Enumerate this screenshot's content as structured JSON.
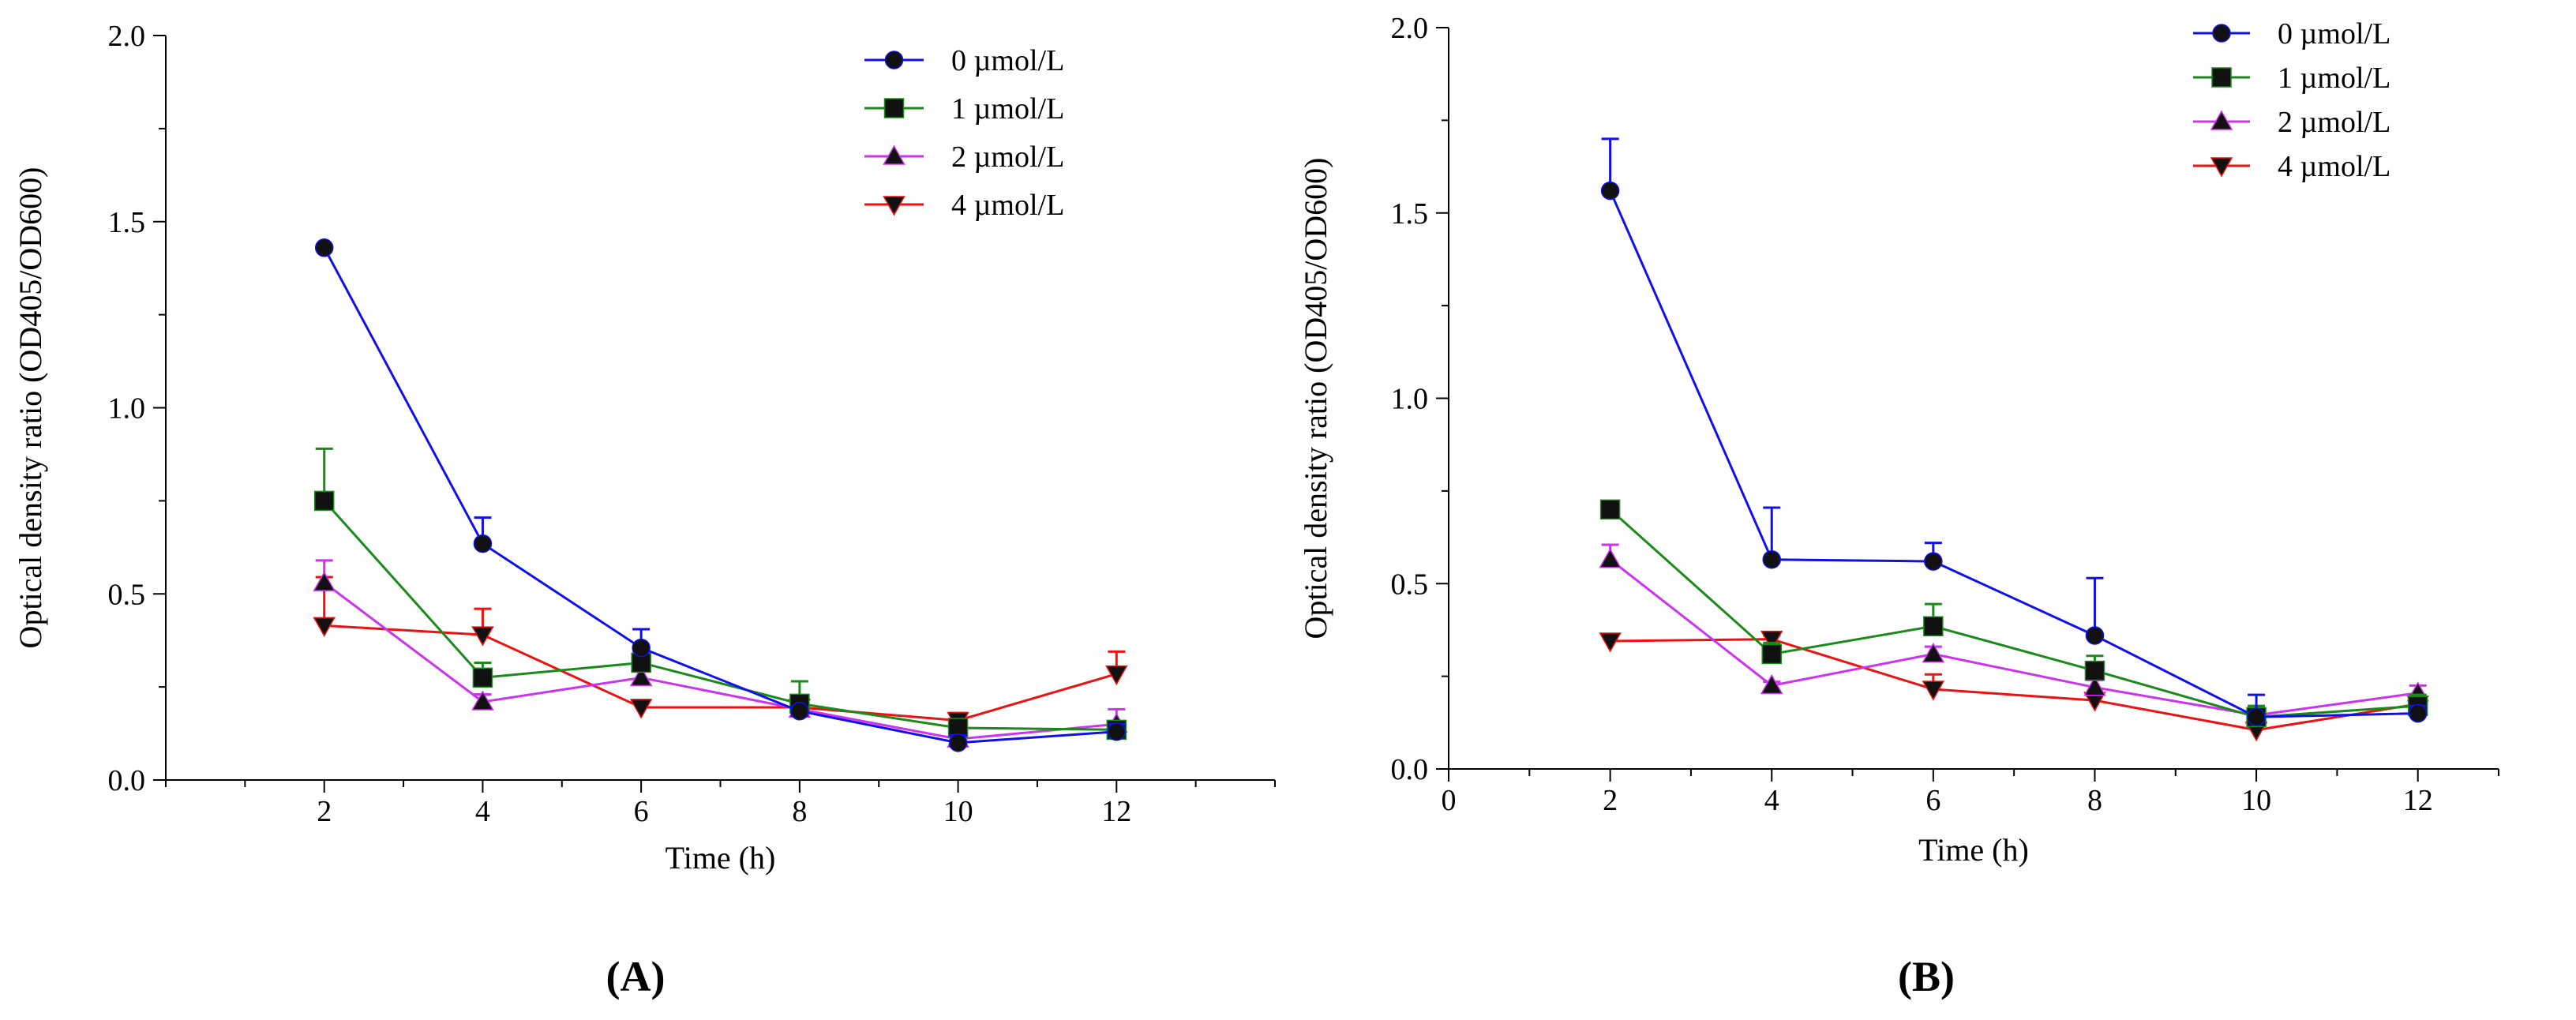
{
  "chart_data": [
    {
      "type": "line",
      "panel_label": "(A)",
      "xlabel": "Time (h)",
      "ylabel": "Optical density ratio (OD405/OD600)",
      "xlim": [
        0,
        14
      ],
      "ylim": [
        0,
        2.0
      ],
      "x_ticks": [
        2,
        4,
        6,
        8,
        10,
        12
      ],
      "y_ticks": [
        "0.0",
        "0.5",
        "1.0",
        "1.5",
        "2.0"
      ],
      "legend_position": "top-right",
      "x": [
        2,
        4,
        6,
        8,
        10,
        12
      ],
      "series": [
        {
          "name": "0  µmol/L",
          "color": "#1010ee",
          "marker": "circle",
          "values": [
            1.43,
            0.635,
            0.355,
            0.185,
            0.1,
            0.13
          ],
          "err": [
            0.0,
            0.07,
            0.05,
            0.01,
            0.02,
            0.02
          ]
        },
        {
          "name": "1  µmol/L",
          "color": "#1a8a1a",
          "marker": "square",
          "values": [
            0.75,
            0.275,
            0.315,
            0.205,
            0.14,
            0.135
          ],
          "err": [
            0.14,
            0.04,
            0.03,
            0.06,
            0.02,
            0.01
          ]
        },
        {
          "name": "2  µmol/L",
          "color": "#cc33ee",
          "marker": "triangle",
          "values": [
            0.53,
            0.21,
            0.275,
            0.19,
            0.11,
            0.15
          ],
          "err": [
            0.06,
            0.02,
            0.02,
            0.02,
            0.02,
            0.04
          ]
        },
        {
          "name": "4  µmol/L",
          "color": "#ee1111",
          "marker": "tri-down",
          "values": [
            0.415,
            0.39,
            0.195,
            0.195,
            0.16,
            0.285
          ],
          "err": [
            0.13,
            0.07,
            0.02,
            0.02,
            0.02,
            0.06
          ]
        }
      ]
    },
    {
      "type": "line",
      "panel_label": "(B)",
      "xlabel": "Time (h)",
      "ylabel": "Optical density ratio (OD405/OD600)",
      "xlim": [
        0,
        13
      ],
      "ylim": [
        0,
        2.0
      ],
      "x_ticks": [
        0,
        2,
        4,
        6,
        8,
        10,
        12
      ],
      "y_ticks": [
        "0.0",
        "0.5",
        "1.0",
        "1.5",
        "2.0"
      ],
      "legend_position": "top-right",
      "x": [
        2,
        4,
        6,
        8,
        10,
        12
      ],
      "series": [
        {
          "name": "0 µmol/L",
          "color": "#1010ee",
          "marker": "circle",
          "values": [
            1.56,
            0.565,
            0.56,
            0.36,
            0.14,
            0.15
          ],
          "err": [
            0.14,
            0.14,
            0.05,
            0.155,
            0.06,
            0.02
          ]
        },
        {
          "name": "1 µmol/L",
          "color": "#1a8a1a",
          "marker": "square",
          "values": [
            0.7,
            0.31,
            0.385,
            0.265,
            0.14,
            0.17
          ],
          "err": [
            0.01,
            0.03,
            0.06,
            0.04,
            0.03,
            0.03
          ]
        },
        {
          "name": "2 µmol/L",
          "color": "#cc33ee",
          "marker": "triangle",
          "values": [
            0.565,
            0.225,
            0.31,
            0.22,
            0.145,
            0.205
          ],
          "err": [
            0.04,
            0.01,
            0.02,
            0.02,
            0.02,
            0.02
          ]
        },
        {
          "name": "4 µmol/L",
          "color": "#ee1111",
          "marker": "tri-down",
          "values": [
            0.345,
            0.35,
            0.215,
            0.185,
            0.105,
            0.175
          ],
          "err": [
            0.0,
            0.01,
            0.04,
            0.02,
            0.03,
            0.02
          ]
        }
      ]
    }
  ]
}
